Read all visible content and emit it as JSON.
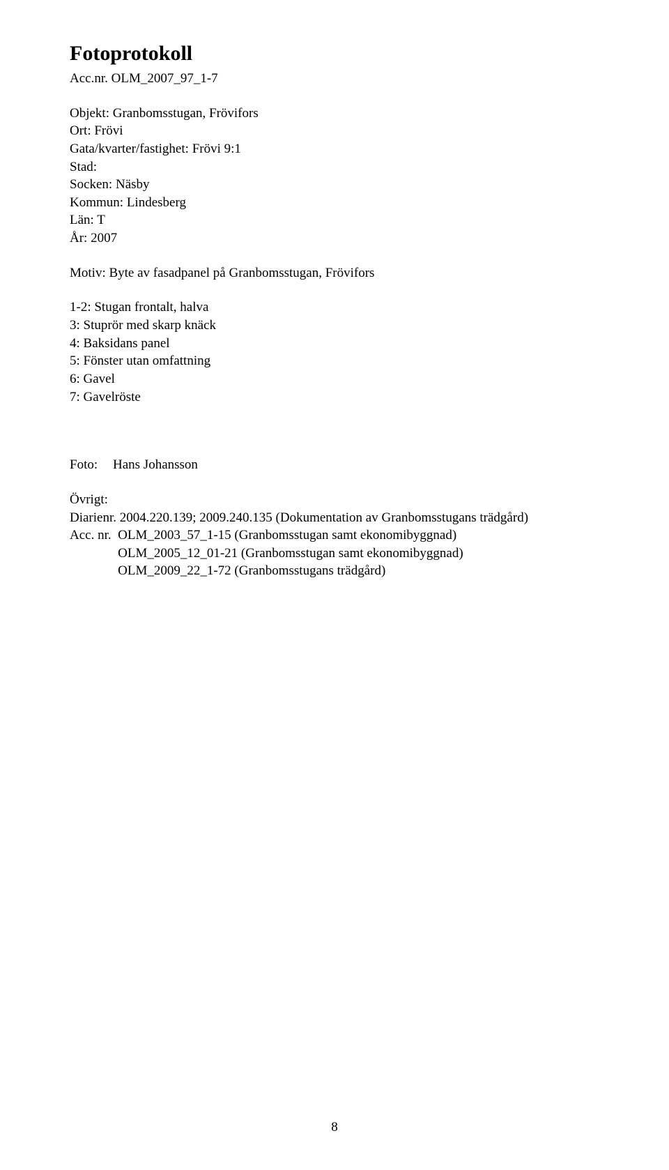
{
  "title": "Fotoprotokoll",
  "accnr": {
    "label": "Acc.nr.",
    "value": "OLM_2007_97_1-7"
  },
  "fields": {
    "objekt": {
      "label": "Objekt:",
      "value": "Granbomsstugan, Frövifors"
    },
    "ort": {
      "label": "Ort:",
      "value": "Frövi"
    },
    "gata": {
      "label": "Gata/kvarter/fastighet:",
      "value": "Frövi 9:1"
    },
    "stad": {
      "label": "Stad:",
      "value": ""
    },
    "socken": {
      "label": "Socken:",
      "value": "Näsby"
    },
    "kommun": {
      "label": "Kommun:",
      "value": "Lindesberg"
    },
    "lan": {
      "label": "Län:",
      "value": "T"
    },
    "ar": {
      "label": "År:",
      "value": "2007"
    }
  },
  "motiv": {
    "label": "Motiv:",
    "value": "Byte av fasadpanel på Granbomsstugan, Frövifors"
  },
  "motiv_list": [
    "1-2: Stugan frontalt, halva",
    "3: Stuprör med skarp knäck",
    "4: Baksidans panel",
    "5: Fönster utan omfattning",
    "6: Gavel",
    "7: Gavelröste"
  ],
  "foto": {
    "label": "Foto:",
    "value": "Hans Johansson"
  },
  "ovrigt": {
    "label": "Övrigt:",
    "diarienr": "Diarienr. 2004.220.139; 2009.240.135 (Dokumentation av Granbomsstugans trädgård)",
    "acc_label": "Acc. nr.",
    "acc_lines": [
      "OLM_2003_57_1-15 (Granbomsstugan samt ekonomibyggnad)",
      "OLM_2005_12_01-21 (Granbomsstugan samt ekonomibyggnad)",
      "OLM_2009_22_1-72 (Granbomsstugans trädgård)"
    ]
  },
  "page_number": "8"
}
